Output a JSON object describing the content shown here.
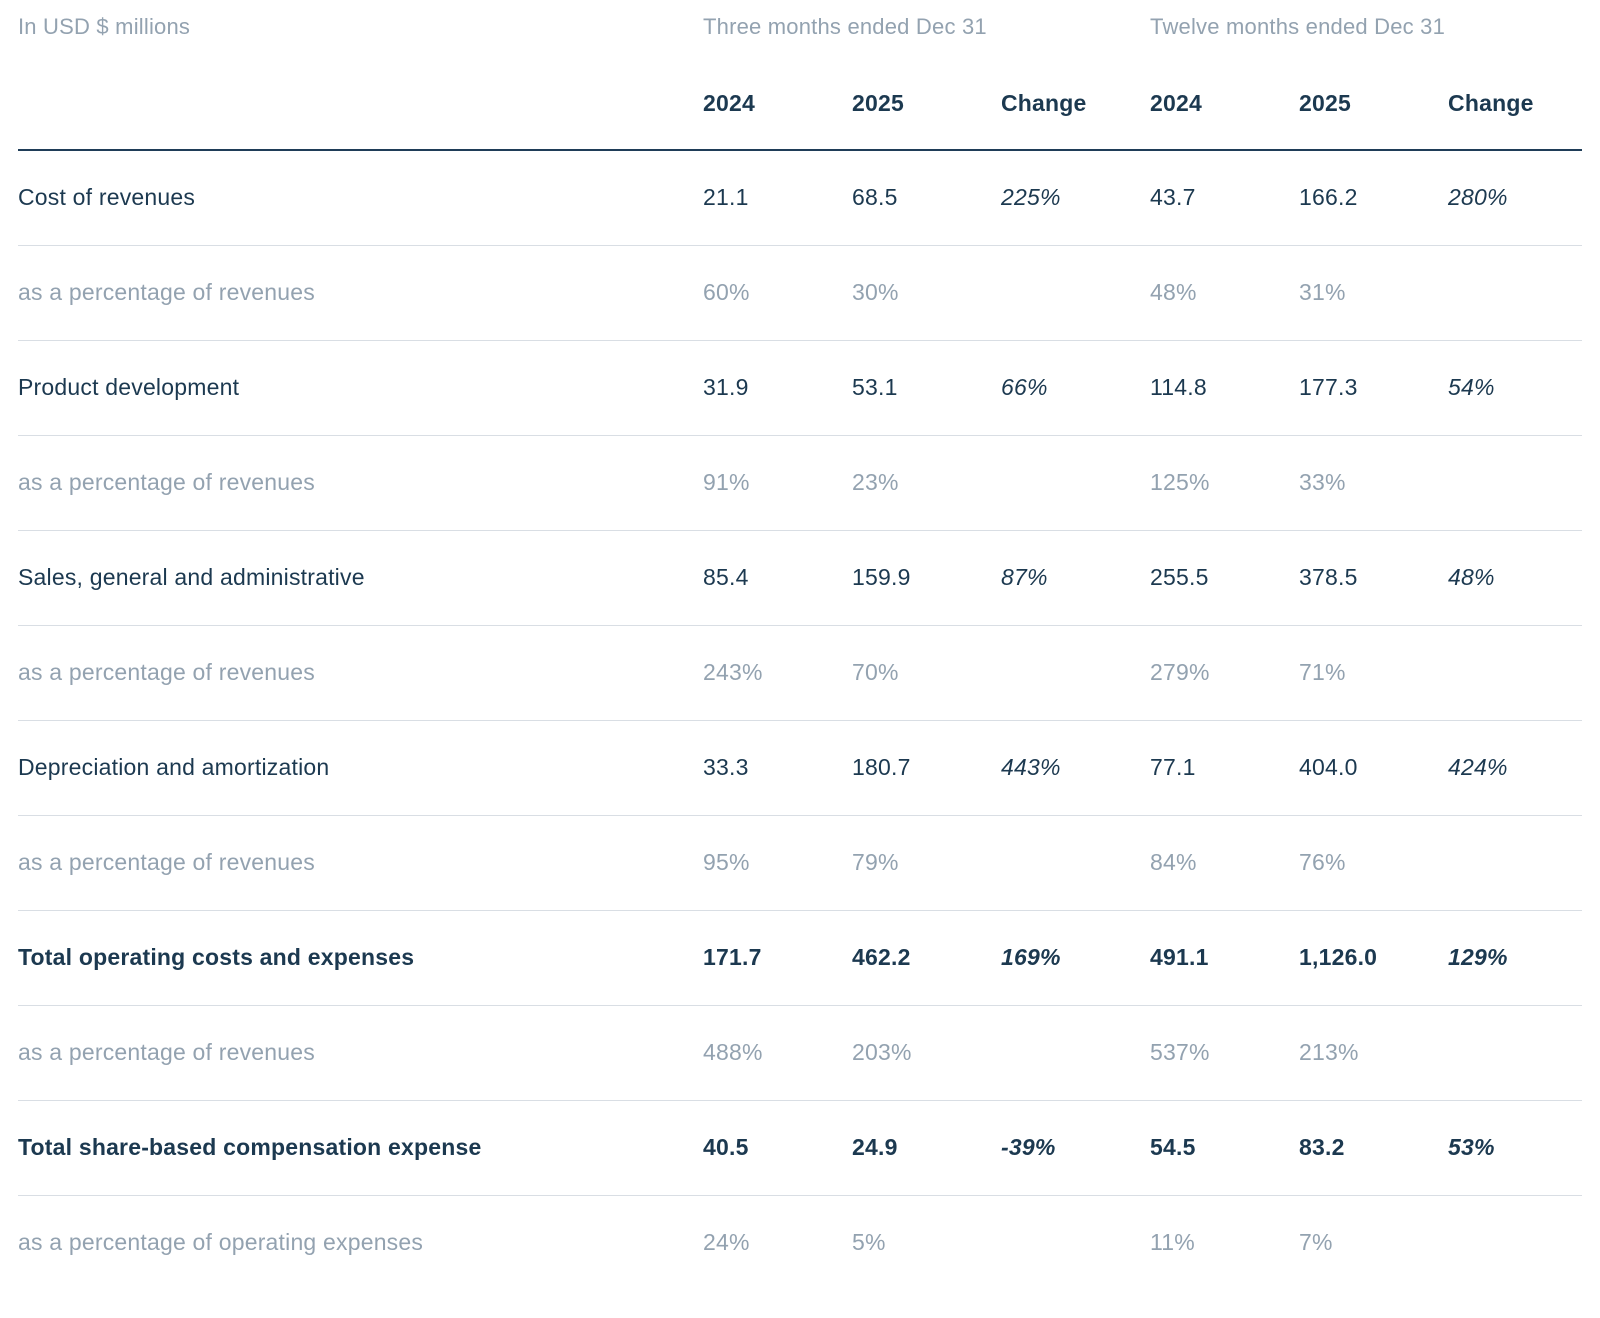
{
  "page": {
    "units_label": "In USD $ millions",
    "group_headers": [
      "Three months ended Dec 31",
      "Twelve months ended Dec 31"
    ],
    "col_headers": [
      "2024",
      "2025",
      "Change",
      "2024",
      "2025",
      "Change"
    ],
    "rows": [
      {
        "label": "Cost of revenues",
        "style": "normal",
        "values": [
          "21.1",
          "68.5",
          "225%",
          "43.7",
          "166.2",
          "280%"
        ]
      },
      {
        "label": "as a percentage of revenues",
        "style": "muted",
        "values": [
          "60%",
          "30%",
          "",
          "48%",
          "31%",
          ""
        ]
      },
      {
        "label": "Product development",
        "style": "normal",
        "values": [
          "31.9",
          "53.1",
          "66%",
          "114.8",
          "177.3",
          "54%"
        ]
      },
      {
        "label": "as a percentage of revenues",
        "style": "muted",
        "values": [
          "91%",
          "23%",
          "",
          "125%",
          "33%",
          ""
        ]
      },
      {
        "label": "Sales, general and administrative",
        "style": "normal",
        "values": [
          "85.4",
          "159.9",
          "87%",
          "255.5",
          "378.5",
          "48%"
        ]
      },
      {
        "label": "as a percentage of revenues",
        "style": "muted",
        "values": [
          "243%",
          "70%",
          "",
          "279%",
          "71%",
          ""
        ]
      },
      {
        "label": "Depreciation and amortization",
        "style": "normal",
        "values": [
          "33.3",
          "180.7",
          "443%",
          "77.1",
          "404.0",
          "424%"
        ]
      },
      {
        "label": "as a percentage of revenues",
        "style": "muted",
        "values": [
          "95%",
          "79%",
          "",
          "84%",
          "76%",
          ""
        ]
      },
      {
        "label": "Total operating costs and expenses",
        "style": "total",
        "values": [
          "171.7",
          "462.2",
          "169%",
          "491.1",
          "1,126.0",
          "129%"
        ]
      },
      {
        "label": "as a percentage of revenues",
        "style": "muted",
        "values": [
          "488%",
          "203%",
          "",
          "537%",
          "213%",
          ""
        ]
      },
      {
        "label": "Total share-based compensation expense",
        "style": "total",
        "values": [
          "40.5",
          "24.9",
          "-39%",
          "54.5",
          "83.2",
          "53%"
        ]
      },
      {
        "label": "as a percentage of operating expenses",
        "style": "muted",
        "values": [
          "24%",
          "5%",
          "",
          "11%",
          "7%",
          ""
        ]
      }
    ],
    "colors": {
      "navy": "#1c3950",
      "muted": "#93a2b0",
      "divider": "#d9dee4",
      "rule": "#1f3d58",
      "background": "#ffffff"
    }
  }
}
